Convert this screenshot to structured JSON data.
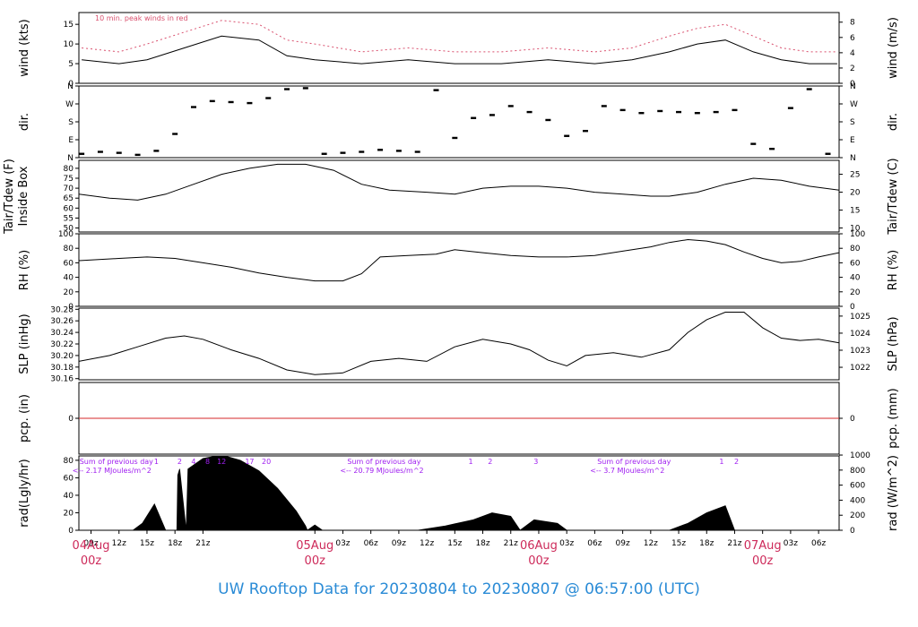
{
  "title": "UW Rooftop Data for 20230804  to  20230807 @ 06:57:00  (UTC)",
  "colors": {
    "peak": "#d9506e",
    "zero_line": "#d62728",
    "summary": "#a020f0",
    "date": "#cd2a5a",
    "title": "#2a8bd6"
  },
  "x_axis": {
    "hour_ticks": [
      "09z",
      "12z",
      "15z",
      "18z",
      "21z",
      "03z",
      "06z",
      "09z",
      "12z",
      "15z",
      "18z",
      "21z",
      "03z",
      "06z",
      "09z",
      "12z",
      "15z",
      "18z",
      "21z",
      "03z",
      "06z"
    ],
    "hour_positions": [
      -24,
      -21,
      -18,
      -15,
      -12,
      3,
      6,
      9,
      12,
      15,
      18,
      21,
      27,
      30,
      33,
      36,
      39,
      42,
      45,
      51,
      54
    ],
    "date_ticks": [
      {
        "pos": -24,
        "date": "04Aug",
        "time": "00z"
      },
      {
        "pos": 0,
        "date": "05Aug",
        "time": "00z"
      },
      {
        "pos": 24,
        "date": "06Aug",
        "time": "00z"
      },
      {
        "pos": 48,
        "date": "07Aug",
        "time": "00z"
      }
    ],
    "range_hours": [
      -25.3,
      56.2
    ]
  },
  "chart_data": [
    {
      "type": "line",
      "panel": "wind",
      "ylabel_left": "wind (kts)",
      "ylabel_right": "wind (m/s)",
      "yticks_left": [
        "0",
        "5",
        "10",
        "15"
      ],
      "yticks_right": [
        "0",
        "2",
        "4",
        "6",
        "8"
      ],
      "ylim": [
        0,
        18
      ],
      "annotation": "10 min. peak winds in red",
      "series": [
        {
          "values": [
            [
              -25,
              6
            ],
            [
              -21,
              5
            ],
            [
              -18,
              6
            ],
            [
              -14,
              9
            ],
            [
              -10,
              12
            ],
            [
              -6,
              11
            ],
            [
              -3,
              7
            ],
            [
              0,
              6
            ],
            [
              5,
              5
            ],
            [
              10,
              6
            ],
            [
              15,
              5
            ],
            [
              20,
              5
            ],
            [
              25,
              6
            ],
            [
              30,
              5
            ],
            [
              34,
              6
            ],
            [
              38,
              8
            ],
            [
              41,
              10
            ],
            [
              44,
              11
            ],
            [
              47,
              8
            ],
            [
              50,
              6
            ],
            [
              53,
              5
            ],
            [
              56,
              5
            ]
          ]
        }
      ],
      "peak_series": {
        "values": [
          [
            -25,
            9
          ],
          [
            -21,
            8
          ],
          [
            -18,
            10
          ],
          [
            -14,
            13
          ],
          [
            -10,
            16
          ],
          [
            -6,
            15
          ],
          [
            -3,
            11
          ],
          [
            0,
            10
          ],
          [
            5,
            8
          ],
          [
            10,
            9
          ],
          [
            15,
            8
          ],
          [
            20,
            8
          ],
          [
            25,
            9
          ],
          [
            30,
            8
          ],
          [
            34,
            9
          ],
          [
            38,
            12
          ],
          [
            41,
            14
          ],
          [
            44,
            15
          ],
          [
            47,
            12
          ],
          [
            50,
            9
          ],
          [
            53,
            8
          ],
          [
            56,
            8
          ]
        ]
      }
    },
    {
      "type": "scatter",
      "panel": "dir",
      "ylabel_left": "dir.",
      "ylabel_right": "dir.",
      "yticks_left": [
        "N",
        "E",
        "S",
        "W",
        "N"
      ],
      "yticks_right": [
        "N",
        "E",
        "S",
        "W",
        "N"
      ],
      "ylim": [
        0,
        360
      ],
      "series": [
        {
          "values": [
            [
              -25,
              20
            ],
            [
              -23,
              30
            ],
            [
              -21,
              25
            ],
            [
              -19,
              15
            ],
            [
              -17,
              35
            ],
            [
              -15,
              120
            ],
            [
              -13,
              255
            ],
            [
              -11,
              285
            ],
            [
              -9,
              280
            ],
            [
              -7,
              275
            ],
            [
              -5,
              300
            ],
            [
              -3,
              345
            ],
            [
              -1,
              350
            ],
            [
              1,
              20
            ],
            [
              3,
              25
            ],
            [
              5,
              30
            ],
            [
              7,
              40
            ],
            [
              9,
              35
            ],
            [
              11,
              30
            ],
            [
              13,
              340
            ],
            [
              15,
              100
            ],
            [
              17,
              200
            ],
            [
              19,
              215
            ],
            [
              21,
              260
            ],
            [
              23,
              230
            ],
            [
              25,
              190
            ],
            [
              27,
              110
            ],
            [
              29,
              135
            ],
            [
              31,
              260
            ],
            [
              33,
              240
            ],
            [
              35,
              225
            ],
            [
              37,
              235
            ],
            [
              39,
              230
            ],
            [
              41,
              225
            ],
            [
              43,
              230
            ],
            [
              45,
              240
            ],
            [
              47,
              70
            ],
            [
              49,
              45
            ],
            [
              51,
              250
            ],
            [
              53,
              345
            ],
            [
              55,
              20
            ]
          ]
        }
      ]
    },
    {
      "type": "line",
      "panel": "temp",
      "ylabel_left": "Tair/Tdew (F)",
      "ylabel_left2": "Inside Box",
      "ylabel_right": "Tair/Tdew (C)",
      "yticks_left": [
        "50",
        "55",
        "60",
        "65",
        "70",
        "75",
        "80"
      ],
      "yticks_right": [
        "10",
        "15",
        "20",
        "25"
      ],
      "ylim": [
        48,
        84
      ],
      "series": [
        {
          "values": [
            [
              -25.3,
              67
            ],
            [
              -22,
              65
            ],
            [
              -19,
              64
            ],
            [
              -16,
              67
            ],
            [
              -13,
              72
            ],
            [
              -10,
              77
            ],
            [
              -7,
              80
            ],
            [
              -4,
              82
            ],
            [
              -1,
              82
            ],
            [
              2,
              79
            ],
            [
              5,
              72
            ],
            [
              8,
              69
            ],
            [
              12,
              68
            ],
            [
              15,
              67
            ],
            [
              18,
              70
            ],
            [
              21,
              71
            ],
            [
              24,
              71
            ],
            [
              27,
              70
            ],
            [
              30,
              68
            ],
            [
              33,
              67
            ],
            [
              36,
              66
            ],
            [
              38,
              66
            ],
            [
              41,
              68
            ],
            [
              44,
              72
            ],
            [
              47,
              75
            ],
            [
              50,
              74
            ],
            [
              53,
              71
            ],
            [
              56.2,
              69
            ]
          ]
        }
      ]
    },
    {
      "type": "line",
      "panel": "rh",
      "ylabel_left": "RH (%)",
      "ylabel_right": "RH (%)",
      "yticks_left": [
        "0",
        "20",
        "40",
        "60",
        "80",
        "100"
      ],
      "yticks_right": [
        "0",
        "20",
        "40",
        "60",
        "80",
        "100"
      ],
      "ylim": [
        0,
        100
      ],
      "series": [
        {
          "values": [
            [
              -25.3,
              63
            ],
            [
              -21,
              66
            ],
            [
              -18,
              68
            ],
            [
              -15,
              66
            ],
            [
              -12,
              60
            ],
            [
              -9,
              54
            ],
            [
              -6,
              46
            ],
            [
              -3,
              40
            ],
            [
              0,
              35
            ],
            [
              3,
              35
            ],
            [
              5,
              45
            ],
            [
              7,
              68
            ],
            [
              10,
              70
            ],
            [
              13,
              72
            ],
            [
              15,
              78
            ],
            [
              18,
              74
            ],
            [
              21,
              70
            ],
            [
              24,
              68
            ],
            [
              27,
              68
            ],
            [
              30,
              70
            ],
            [
              33,
              76
            ],
            [
              36,
              82
            ],
            [
              38,
              88
            ],
            [
              40,
              92
            ],
            [
              42,
              90
            ],
            [
              44,
              85
            ],
            [
              46,
              75
            ],
            [
              48,
              66
            ],
            [
              50,
              60
            ],
            [
              52,
              62
            ],
            [
              54,
              68
            ],
            [
              56.2,
              74
            ]
          ]
        }
      ]
    },
    {
      "type": "line",
      "panel": "slp",
      "ylabel_left": "SLP (inHg)",
      "ylabel_right": "SLP (hPa)",
      "yticks_left": [
        "30.16",
        "30.18",
        "30.20",
        "30.22",
        "30.24",
        "30.26",
        "30.28"
      ],
      "yticks_right": [
        "1022",
        "1023",
        "1024",
        "1025"
      ],
      "ylim": [
        30.158,
        30.282
      ],
      "series": [
        {
          "values": [
            [
              -25.3,
              30.19
            ],
            [
              -22,
              30.2
            ],
            [
              -19,
              30.215
            ],
            [
              -16,
              30.23
            ],
            [
              -14,
              30.234
            ],
            [
              -12,
              30.228
            ],
            [
              -9,
              30.21
            ],
            [
              -6,
              30.195
            ],
            [
              -3,
              30.175
            ],
            [
              0,
              30.167
            ],
            [
              3,
              30.17
            ],
            [
              6,
              30.19
            ],
            [
              9,
              30.195
            ],
            [
              12,
              30.19
            ],
            [
              15,
              30.215
            ],
            [
              18,
              30.228
            ],
            [
              21,
              30.22
            ],
            [
              23,
              30.21
            ],
            [
              25,
              30.192
            ],
            [
              27,
              30.182
            ],
            [
              29,
              30.2
            ],
            [
              32,
              30.205
            ],
            [
              35,
              30.197
            ],
            [
              38,
              30.21
            ],
            [
              40,
              30.24
            ],
            [
              42,
              30.262
            ],
            [
              44,
              30.275
            ],
            [
              46,
              30.275
            ],
            [
              48,
              30.248
            ],
            [
              50,
              30.23
            ],
            [
              52,
              30.226
            ],
            [
              54,
              30.228
            ],
            [
              56.2,
              30.222
            ]
          ]
        }
      ]
    },
    {
      "type": "line",
      "panel": "pcp",
      "ylabel_left": "pcp. (in)",
      "ylabel_right": "pcp. (mm)",
      "yticks_left": [
        "0"
      ],
      "yticks_right": [
        "0"
      ],
      "ylim": [
        -0.5,
        0.5
      ],
      "series": [
        {
          "values": [
            [
              -25.3,
              0
            ],
            [
              56.2,
              0
            ]
          ]
        }
      ]
    },
    {
      "type": "area",
      "panel": "rad",
      "ylabel_left": "rad(Lgly/hr)",
      "ylabel_right": "rad (W/m^2)",
      "yticks_left": [
        "0",
        "20",
        "40",
        "60",
        "80"
      ],
      "yticks_right": [
        "0",
        "200",
        "400",
        "600",
        "800",
        "1000"
      ],
      "ylim": [
        0,
        85
      ],
      "series": [
        {
          "values": [
            [
              -19.5,
              0
            ],
            [
              -18.5,
              8
            ],
            [
              -17.2,
              30
            ],
            [
              -16,
              0
            ],
            [
              -14.8,
              0
            ],
            [
              -14.7,
              63
            ],
            [
              -14.5,
              70
            ],
            [
              -13.8,
              0
            ],
            [
              -13.6,
              70
            ],
            [
              -12,
              82
            ],
            [
              -10,
              86
            ],
            [
              -8,
              80
            ],
            [
              -6,
              68
            ],
            [
              -4,
              48
            ],
            [
              -2,
              22
            ],
            [
              -1,
              5
            ],
            [
              -0.8,
              0
            ],
            [
              0,
              6
            ],
            [
              0.8,
              0
            ],
            [
              11,
              0
            ],
            [
              14,
              5
            ],
            [
              17,
              12
            ],
            [
              19,
              20
            ],
            [
              21,
              16
            ],
            [
              22,
              0
            ],
            [
              23.5,
              12
            ],
            [
              26,
              8
            ],
            [
              27,
              0
            ],
            [
              38,
              0
            ],
            [
              40,
              8
            ],
            [
              42,
              20
            ],
            [
              44,
              28
            ],
            [
              45,
              0
            ]
          ]
        }
      ]
    }
  ],
  "radiation_summaries": [
    {
      "pos": -26,
      "line1": "Sum of previous day",
      "line2": "<-- 2.17 MJoules/m^2"
    },
    {
      "pos": 2.7,
      "line1": "Sum of previous day",
      "line2": "<-- 20.79 MJoules/m^2"
    },
    {
      "pos": 29.5,
      "line1": "Sum of previous day",
      "line2": "<-- 3.7 MJoules/m^2"
    }
  ],
  "radiation_counts": [
    {
      "pos": -17,
      "label": "1"
    },
    {
      "pos": -14.5,
      "label": "2"
    },
    {
      "pos": -13,
      "label": "4"
    },
    {
      "pos": -11.5,
      "label": "8"
    },
    {
      "pos": -10,
      "label": "12"
    },
    {
      "pos": -7,
      "label": "17"
    },
    {
      "pos": -5.2,
      "label": "20"
    },
    {
      "pos": 16.7,
      "label": "1"
    },
    {
      "pos": 18.8,
      "label": "2"
    },
    {
      "pos": 23.7,
      "label": "3"
    },
    {
      "pos": 43.6,
      "label": "1"
    },
    {
      "pos": 45.2,
      "label": "2"
    }
  ]
}
